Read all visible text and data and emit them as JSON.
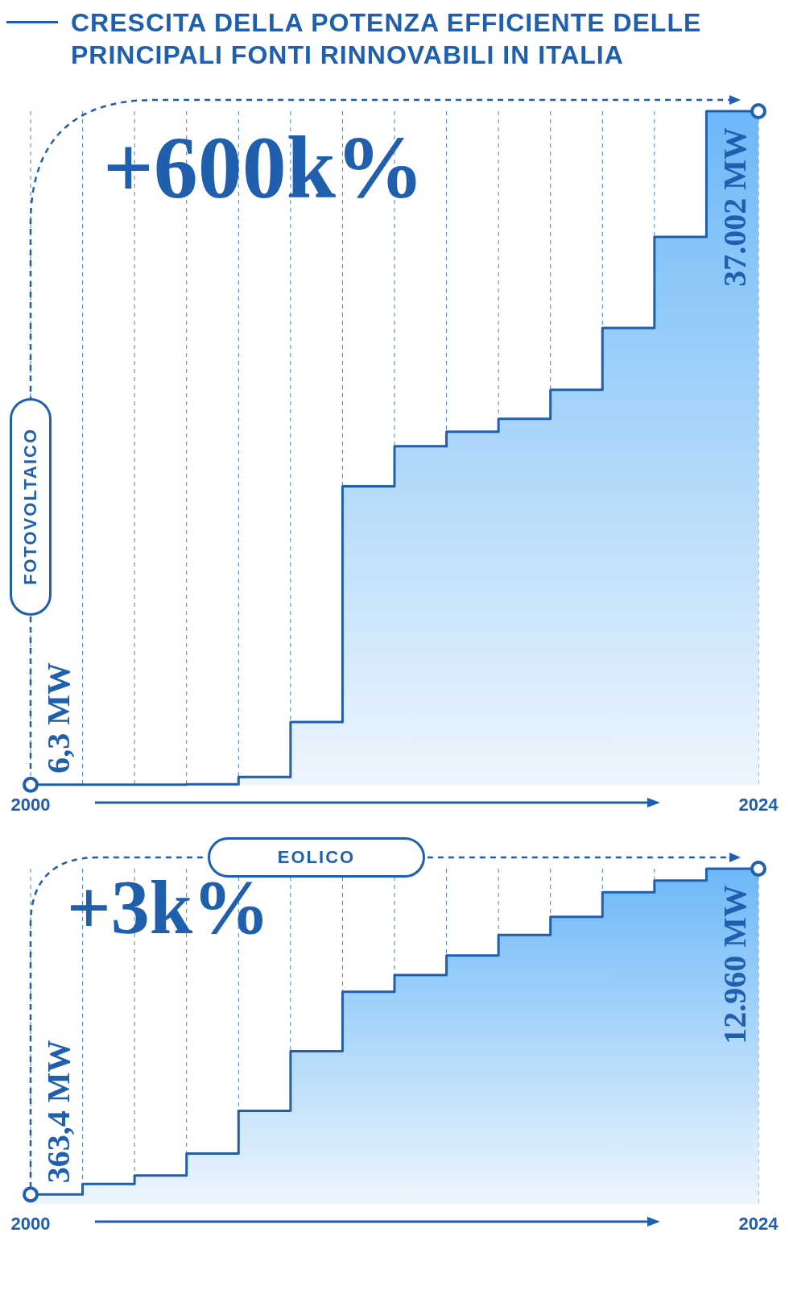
{
  "chart_data": [
    {
      "type": "step",
      "title": "CRESCITA DELLA POTENZA EFFICIENTE DELLE PRINCIPALI FONTI RINNOVABILI IN ITALIA",
      "categories": [
        "2000",
        null,
        null,
        null,
        null,
        null,
        null,
        null,
        null,
        null,
        null,
        null,
        null,
        null,
        "2024"
      ],
      "series": [
        {
          "name": "FOTOVOLTAICO",
          "color": "#1f5fae",
          "values": [
            6.3,
            7,
            7,
            30,
            430,
            3450,
            16400,
            18600,
            19400,
            20100,
            21700,
            25100,
            30100,
            37002,
            37002
          ],
          "value_labels": [
            "6,3 MW",
            null,
            null,
            null,
            null,
            null,
            null,
            null,
            null,
            null,
            null,
            null,
            null,
            null,
            "37.002 MW"
          ]
        }
      ],
      "annotations": [
        "+600k%"
      ],
      "grid": "x",
      "tick_labels": "x"
    },
    {
      "type": "step",
      "categories": [
        "2000",
        null,
        null,
        null,
        null,
        null,
        null,
        null,
        null,
        null,
        null,
        null,
        null,
        null,
        "2024"
      ],
      "series": [
        {
          "name": "EOLICO",
          "color": "#1f5fae",
          "values": [
            363.4,
            770,
            1100,
            1950,
            3600,
            5900,
            8200,
            8850,
            9600,
            10400,
            11100,
            12050,
            12500,
            12960,
            12960
          ],
          "value_labels": [
            "363,4 MW",
            null,
            null,
            null,
            null,
            null,
            null,
            null,
            null,
            null,
            null,
            null,
            null,
            null,
            "12.960 MW"
          ]
        }
      ],
      "annotations": [
        "+3k%"
      ],
      "grid": "x",
      "tick_labels": "x"
    }
  ]
}
